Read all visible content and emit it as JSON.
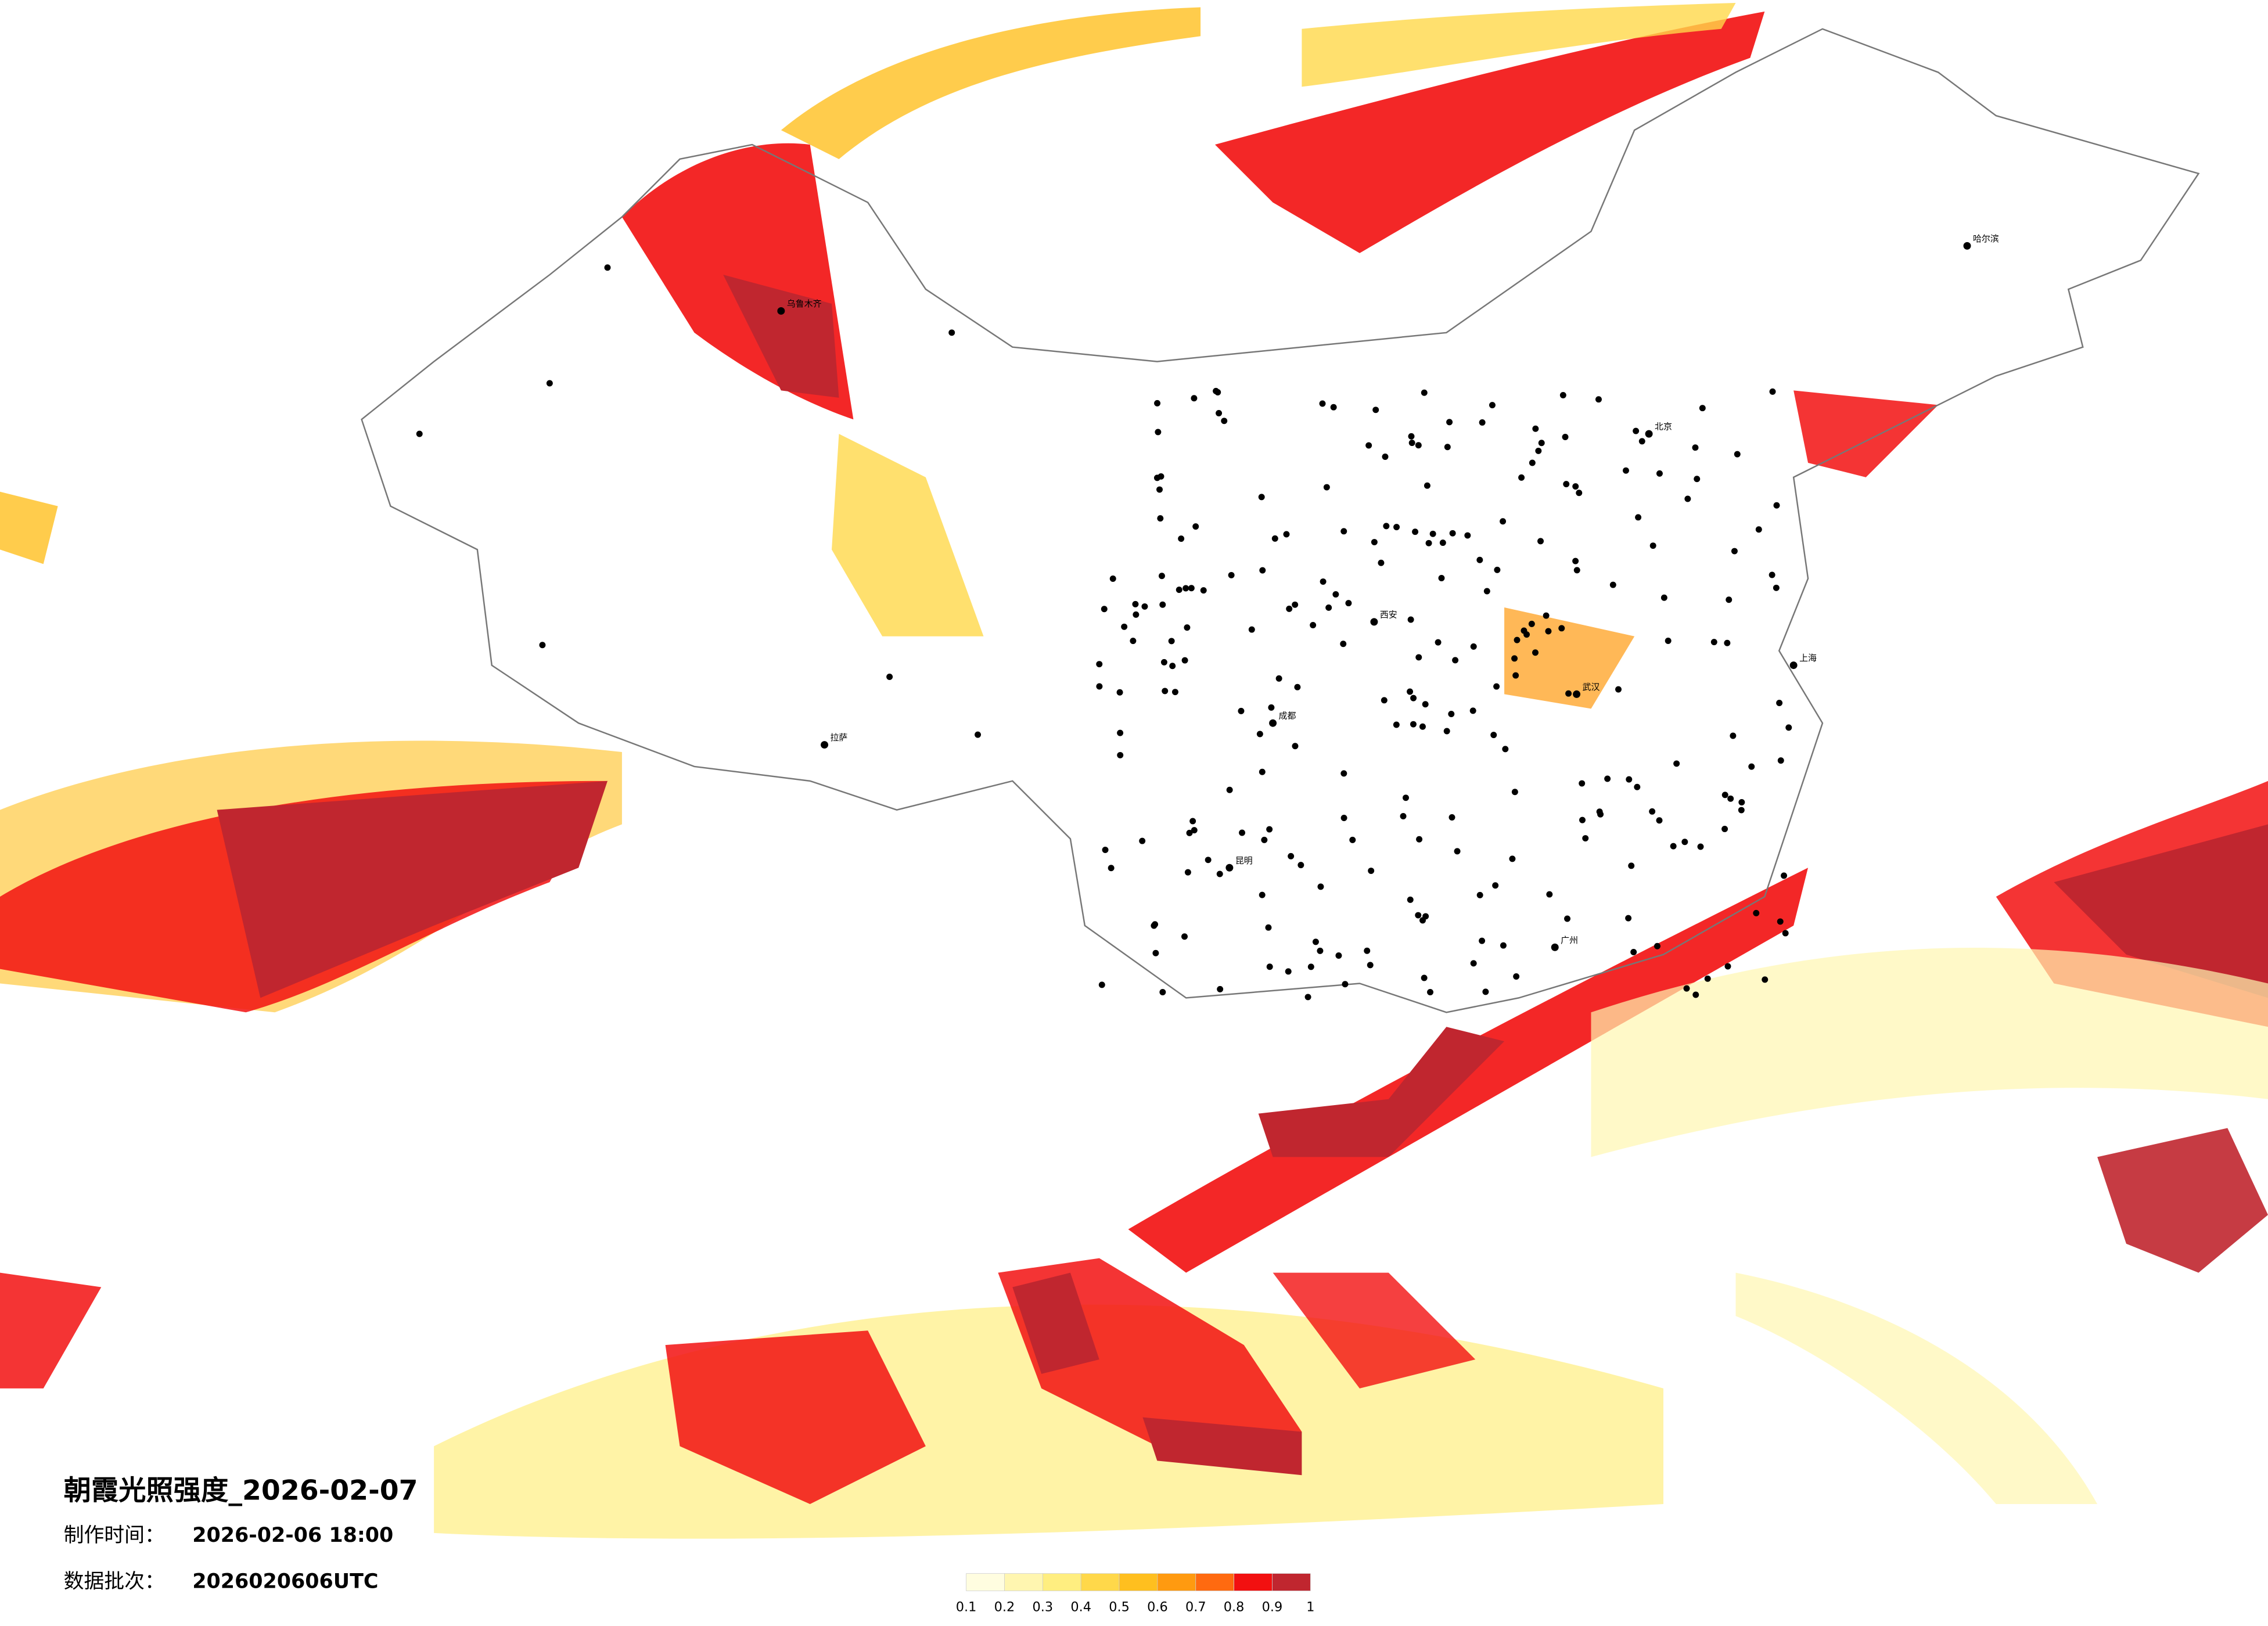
{
  "title": "朝霞光照强度_2026-02-07",
  "production_time": {
    "label": "制作时间：",
    "value": "2026-02-06 18:00"
  },
  "batch": {
    "label": "数据批次：",
    "value": "2026020606UTC"
  },
  "legend": {
    "ticks": [
      0.1,
      0.2,
      0.3,
      0.4,
      0.5,
      0.6,
      0.7,
      0.8,
      0.9,
      1
    ],
    "colors": [
      "#fffde0",
      "#fff6b0",
      "#ffee80",
      "#ffd84a",
      "#ffbf1f",
      "#ff9a10",
      "#ff6a10",
      "#f21010",
      "#c0262f"
    ]
  },
  "cities": [
    "北京",
    "上海",
    "广州",
    "乌鲁木齐",
    "拉萨",
    "哈尔滨",
    "成都",
    "西安",
    "武汉",
    "昆明"
  ]
}
